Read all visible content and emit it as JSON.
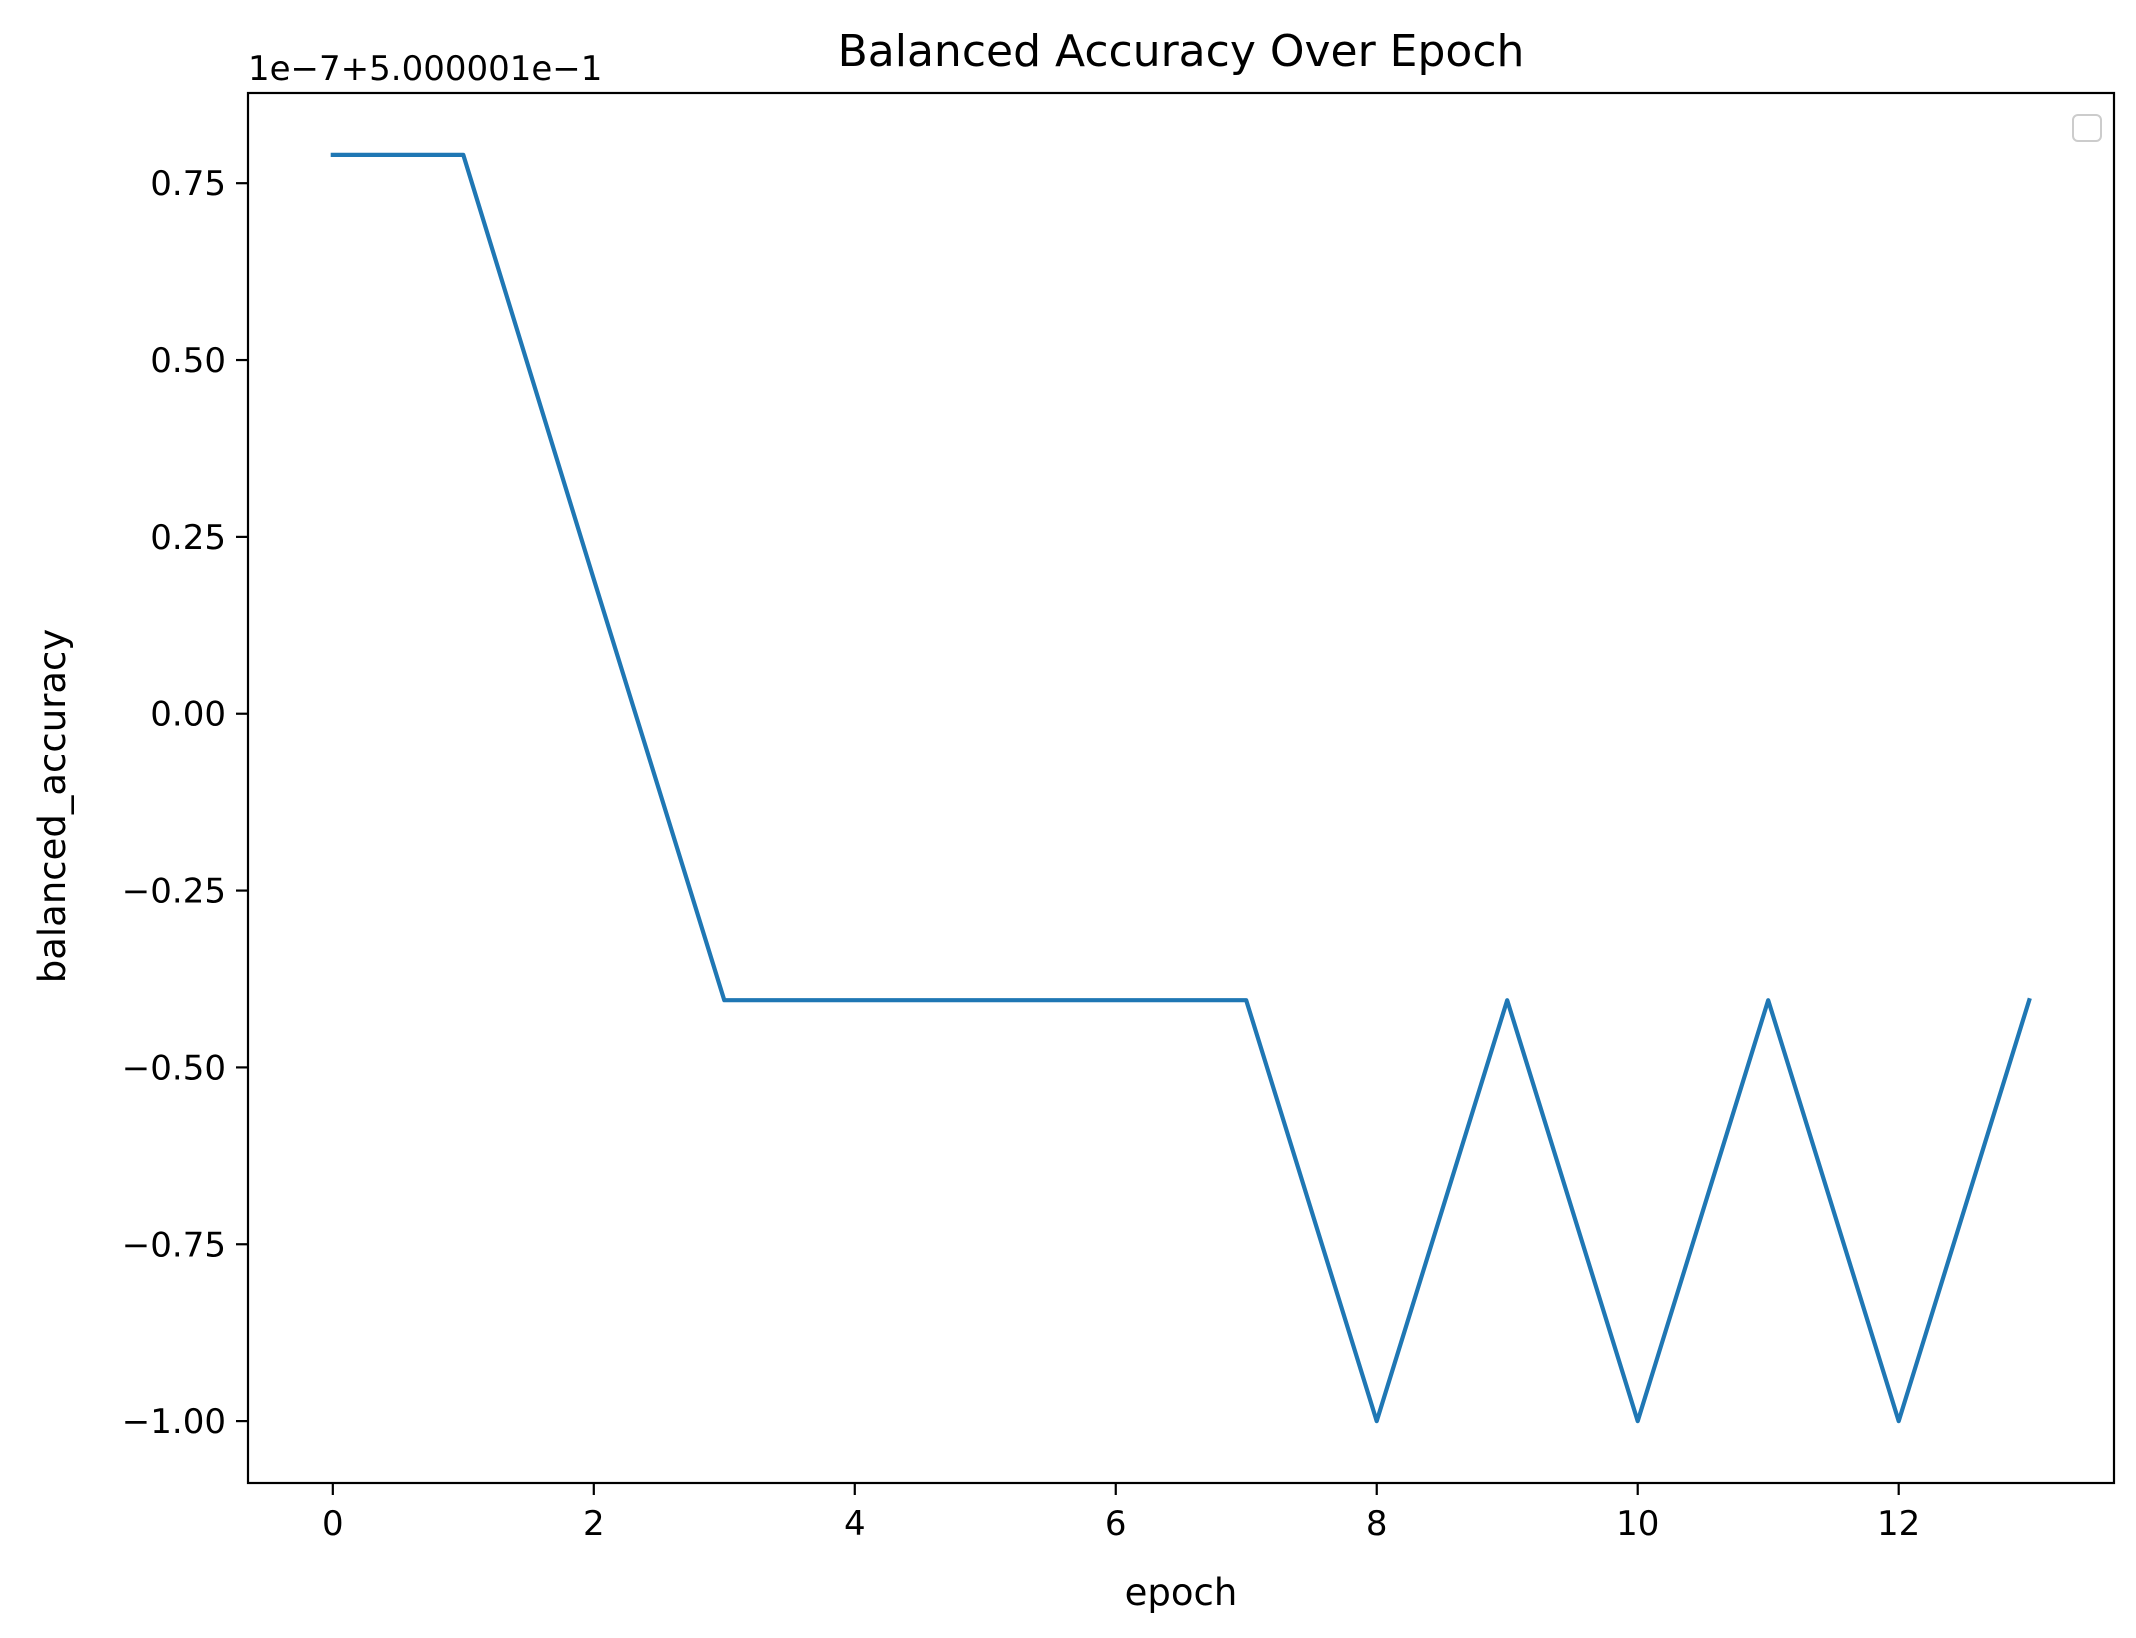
{
  "chart_data": {
    "type": "line",
    "title": "Balanced Accuracy Over Epoch",
    "xlabel": "epoch",
    "ylabel": "balanced_accuracy",
    "y_offset_label": "1e−7+5.000001e−1",
    "xlim": [
      -0.65,
      13.65
    ],
    "ylim": [
      -1.0875,
      0.8775
    ],
    "x_ticks": [
      0,
      2,
      4,
      6,
      8,
      10,
      12
    ],
    "x_tick_labels": [
      "0",
      "2",
      "4",
      "6",
      "8",
      "10",
      "12"
    ],
    "y_ticks": [
      0.75,
      0.5,
      0.25,
      0.0,
      -0.25,
      -0.5,
      -0.75,
      -1.0
    ],
    "y_tick_labels": [
      "0.75",
      "0.50",
      "0.25",
      "0.00",
      "−0.25",
      "−0.50",
      "−0.75",
      "−1.00"
    ],
    "grid": false,
    "legend": {
      "placement": "top-right",
      "entries": []
    },
    "series": [
      {
        "color": "#1f77b4",
        "x": [
          0,
          1,
          2,
          3,
          4,
          5,
          6,
          7,
          8,
          9,
          10,
          11,
          12,
          13
        ],
        "y": [
          0.79,
          0.79,
          0.19,
          -0.405,
          -0.405,
          -0.405,
          -0.405,
          -0.405,
          -1.0,
          -0.405,
          -1.0,
          -0.405,
          -1.0,
          -0.405
        ]
      }
    ]
  }
}
